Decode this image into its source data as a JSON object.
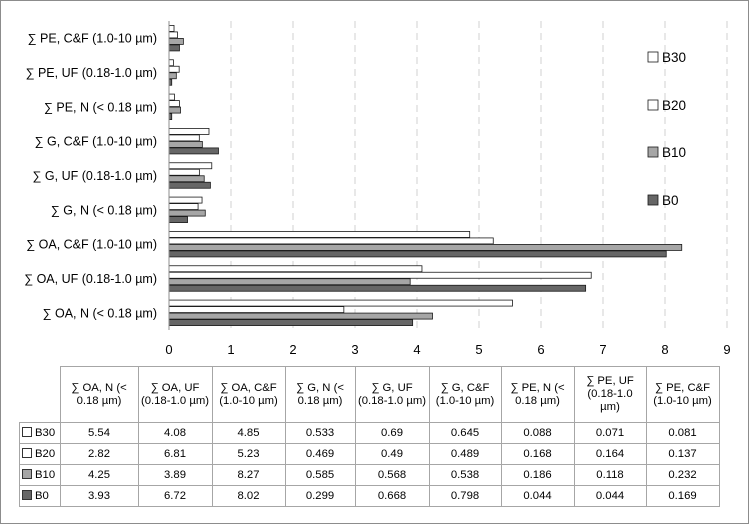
{
  "chart_data": {
    "type": "bar",
    "orientation": "horizontal",
    "categories": [
      "∑ OA, N (< 0.18 µm)",
      "∑ OA, UF (0.18-1.0 µm)",
      "∑ OA, C&F (1.0-10 µm)",
      "∑ G, N (< 0.18 µm)",
      "∑ G, UF (0.18-1.0 µm)",
      "∑ G, C&F (1.0-10 µm)",
      "∑ PE, N (< 0.18 µm)",
      "∑ PE, UF (0.18-1.0 µm)",
      "∑ PE, C&F (1.0-10 µm)"
    ],
    "table_headers": [
      "∑ OA, N (< 0.18 µm)",
      "∑ OA, UF (0.18-1.0 µm)",
      "∑ OA, C&F (1.0-10 µm)",
      "∑ G, N (< 0.18 µm)",
      "∑ G, UF (0.18-1.0 µm)",
      "∑ G, C&F (1.0-10 µm)",
      "∑ PE, N (< 0.18 µm)",
      "∑ PE, UF (0.18-1.0 µm)",
      "∑ PE, C&F (1.0-10 µm)"
    ],
    "series": [
      {
        "name": "B30",
        "color": "#ffffff",
        "values": [
          5.54,
          4.08,
          4.85,
          0.533,
          0.69,
          0.645,
          0.088,
          0.071,
          0.081
        ],
        "labels": [
          "5.54",
          "4.08",
          "4.85",
          "0.533",
          "0.69",
          "0.645",
          "0.088",
          "0.071",
          "0.081"
        ]
      },
      {
        "name": "B20",
        "color": "#ffffff",
        "values": [
          2.82,
          6.81,
          5.23,
          0.469,
          0.49,
          0.489,
          0.168,
          0.164,
          0.137
        ],
        "labels": [
          "2.82",
          "6.81",
          "5.23",
          "0.469",
          "0.49",
          "0.489",
          "0.168",
          "0.164",
          "0.137"
        ]
      },
      {
        "name": "B10",
        "color": "#a6a6a6",
        "values": [
          4.25,
          3.89,
          8.27,
          0.585,
          0.568,
          0.538,
          0.186,
          0.118,
          0.232
        ],
        "labels": [
          "4.25",
          "3.89",
          "8.27",
          "0.585",
          "0.568",
          "0.538",
          "0.186",
          "0.118",
          "0.232"
        ]
      },
      {
        "name": "B0",
        "color": "#666666",
        "values": [
          3.93,
          6.72,
          8.02,
          0.299,
          0.668,
          0.798,
          0.044,
          0.044,
          0.169
        ],
        "labels": [
          "3.93",
          "6.72",
          "8.02",
          "0.299",
          "0.668",
          "0.798",
          "0.044",
          "0.044",
          "0.169"
        ]
      }
    ],
    "xlim": [
      0,
      9
    ],
    "xticks": [
      "0",
      "1",
      "2",
      "3",
      "4",
      "5",
      "6",
      "7",
      "8",
      "9"
    ],
    "grid": "vertical dashed",
    "legend": {
      "placement": "right",
      "order": [
        "B30",
        "B20",
        "B10",
        "B0"
      ]
    },
    "has_data_table": true
  }
}
